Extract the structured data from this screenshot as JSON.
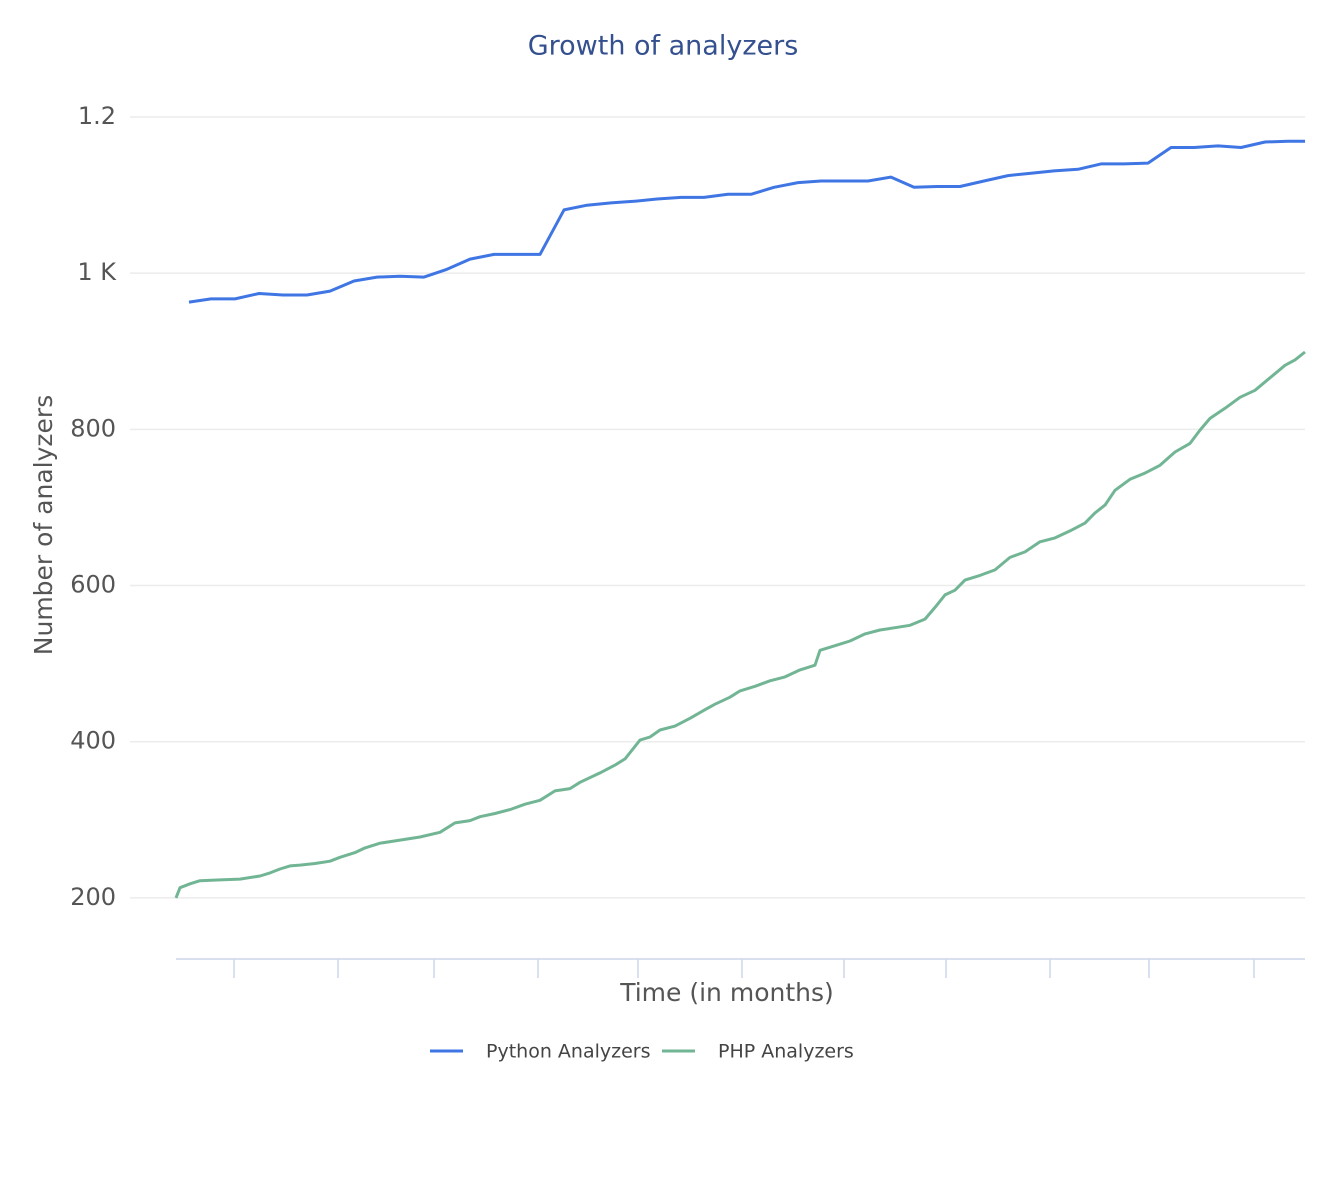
{
  "chart_data": {
    "type": "line",
    "title": "Growth of analyzers",
    "x_label": "Time (in months)",
    "y_label": "Number of analyzers",
    "xlim": [
      0,
      112.9
    ],
    "ylim": [
      123,
      1200
    ],
    "yticks": [
      200,
      400,
      600,
      800,
      {
        "value": 1000,
        "label": "1 K"
      },
      {
        "value": 1200,
        "label": "1.2"
      }
    ],
    "grid": true,
    "legend": "bottom",
    "series": [
      {
        "name": "Python Analyzers",
        "color": "#3f76e4",
        "x": [
          1.3,
          3.5,
          5.9,
          8.3,
          10.7,
          13.1,
          15.4,
          17.8,
          20.1,
          22.4,
          24.8,
          27.1,
          29.4,
          31.8,
          34.1,
          36.4,
          38.8,
          41.1,
          43.5,
          45.8,
          48.1,
          50.5,
          52.8,
          55.2,
          57.5,
          59.8,
          62.2,
          64.5,
          66.9,
          69.2,
          71.5,
          73.8,
          76.1,
          78.4,
          80.8,
          83.2,
          85.5,
          87.8,
          90.2,
          92.5,
          94.8,
          97.2,
          99.5,
          101.8,
          104.2,
          106.5,
          108.9,
          111.2,
          112.9
        ],
        "values": [
          963,
          967,
          967,
          974,
          972,
          972,
          977,
          990,
          995,
          996,
          995,
          1005,
          1018,
          1024,
          1024,
          1024,
          1081,
          1087,
          1090,
          1092,
          1095,
          1097,
          1097,
          1101,
          1101,
          1110,
          1116,
          1118,
          1118,
          1118,
          1123,
          1110,
          1111,
          1111,
          1118,
          1125,
          1128,
          1131,
          1133,
          1140,
          1140,
          1141,
          1161,
          1161,
          1163,
          1161,
          1168,
          1169,
          1169
        ]
      },
      {
        "name": "PHP Analyzers",
        "color": "#72b594",
        "x": [
          0,
          0.4,
          1.4,
          2.4,
          4.4,
          6.4,
          8.4,
          9.4,
          10.4,
          11.4,
          12.4,
          13.9,
          15.4,
          16.4,
          17.9,
          18.9,
          20.4,
          22.4,
          24.4,
          26.4,
          27.9,
          29.4,
          30.4,
          31.9,
          33.4,
          34.9,
          36.4,
          37.9,
          39.4,
          40.4,
          42.4,
          43.9,
          44.9,
          46.4,
          47.4,
          48.4,
          49.9,
          51.4,
          52.9,
          53.9,
          55.4,
          56.4,
          57.9,
          59.4,
          60.9,
          62.4,
          63.9,
          64.4,
          65.9,
          67.4,
          68.9,
          70.4,
          71.9,
          73.4,
          74.9,
          75.9,
          76.9,
          77.9,
          78.9,
          80.4,
          81.9,
          83.4,
          84.9,
          86.4,
          87.9,
          89.4,
          90.9,
          91.9,
          92.9,
          93.9,
          95.4,
          96.9,
          98.4,
          99.9,
          101.4,
          102.4,
          103.4,
          104.9,
          106.4,
          107.9,
          109.4,
          110.9,
          111.9,
          112.9
        ],
        "values": [
          200,
          213,
          218,
          222,
          223,
          224,
          228,
          232,
          237,
          241,
          242,
          244,
          247,
          252,
          258,
          264,
          270,
          274,
          278,
          284,
          296,
          299,
          304,
          308,
          313,
          320,
          325,
          337,
          340,
          348,
          360,
          370,
          378,
          402,
          406,
          415,
          420,
          430,
          441,
          448,
          457,
          465,
          471,
          478,
          483,
          492,
          498,
          517,
          523,
          529,
          538,
          543,
          546,
          549,
          557,
          572,
          588,
          594,
          607,
          613,
          620,
          636,
          643,
          656,
          661,
          670,
          680,
          693,
          703,
          722,
          736,
          744,
          754,
          771,
          782,
          799,
          814,
          827,
          841,
          850,
          866,
          882,
          889,
          899
        ]
      }
    ]
  }
}
